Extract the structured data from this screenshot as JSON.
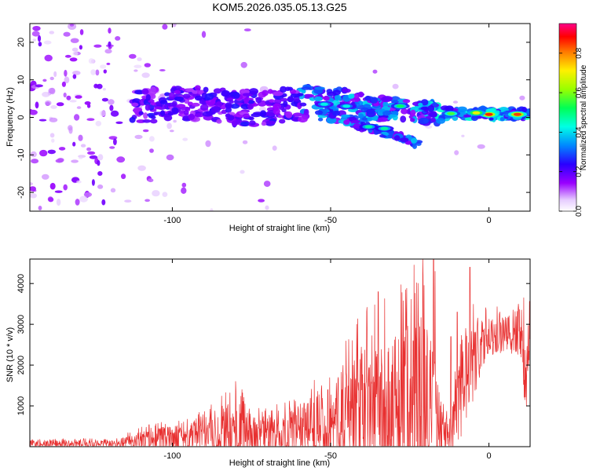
{
  "title": "KOM5.2026.035.05.13.G25",
  "colors": {
    "snr_line": "#e83030",
    "frame": "#000000"
  },
  "chart_data": [
    {
      "type": "heatmap",
      "title": "KOM5.2026.035.05.13.G25",
      "xlabel": "Height of straight line (km)",
      "ylabel": "Frequency (Hz)",
      "xlim": [
        -145,
        13
      ],
      "ylim": [
        -25,
        25
      ],
      "xticks": [
        -100,
        -50,
        0
      ],
      "xtick_labels": [
        "-100",
        "-50",
        "0"
      ],
      "yticks": [
        -20,
        -10,
        0,
        10,
        20
      ],
      "ytick_labels": [
        "-20",
        "-10",
        "0",
        "10",
        "20"
      ],
      "colorbar": {
        "label": "Normalized spectral amplitude",
        "range": [
          0,
          0.95
        ],
        "ticks": [
          0,
          0.2,
          0.4,
          0.6,
          0.8
        ],
        "tick_labels": [
          "0.0",
          "0.2",
          "0.4",
          "0.6",
          "0.8"
        ],
        "colormap": "rainbow (white-violet-blue-cyan-green-yellow-red-magenta)"
      },
      "ridge": [
        {
          "x": -113,
          "f": 3.0
        },
        {
          "x": -100,
          "f": 3.5
        },
        {
          "x": -90,
          "f": 3.5
        },
        {
          "x": -80,
          "f": 2.5
        },
        {
          "x": -70,
          "f": 2.5
        },
        {
          "x": -60,
          "f": 4.0
        },
        {
          "x": -50,
          "f": 3.5
        },
        {
          "x": -40,
          "f": 2.0
        },
        {
          "x": -30,
          "f": 2.5
        },
        {
          "x": -20,
          "f": 1.5
        },
        {
          "x": -10,
          "f": 1.0
        },
        {
          "x": 0,
          "f": 0.8
        },
        {
          "x": 13,
          "f": 0.8
        }
      ],
      "strong_blobs": [
        {
          "x": 0,
          "f": 0.8,
          "amp": 0.92
        },
        {
          "x": 9,
          "f": 0.8,
          "amp": 0.9
        },
        {
          "x": -4,
          "f": 1.2,
          "amp": 0.75
        },
        {
          "x": -12,
          "f": 1.0,
          "amp": 0.6
        },
        {
          "x": -28,
          "f": 3.0,
          "amp": 0.55
        },
        {
          "x": -33,
          "f": -3.0,
          "amp": 0.5
        },
        {
          "x": -38,
          "f": -2.5,
          "amp": 0.5
        },
        {
          "x": -45,
          "f": 3.0,
          "amp": 0.45
        },
        {
          "x": -52,
          "f": 3.5,
          "amp": 0.45
        }
      ],
      "secondary_branch": [
        {
          "x": -45,
          "f": -1.0
        },
        {
          "x": -35,
          "f": -3.5
        },
        {
          "x": -25,
          "f": -6.0
        },
        {
          "x": -22,
          "f": -7.5
        }
      ]
    },
    {
      "type": "line",
      "xlabel": "Height of straight line (km)",
      "ylabel": "SNR (10 * v/v)",
      "xlim": [
        -145,
        13
      ],
      "ylim": [
        0,
        4600
      ],
      "xticks": [
        -100,
        -50,
        0
      ],
      "xtick_labels": [
        "-100",
        "-50",
        "0"
      ],
      "yticks": [
        1000,
        2000,
        3000,
        4000
      ],
      "ytick_labels": [
        "1000",
        "2000",
        "3000",
        "4000"
      ],
      "envelope": [
        {
          "x": -145,
          "base": 60,
          "amp": 100
        },
        {
          "x": -118,
          "base": 60,
          "amp": 100
        },
        {
          "x": -110,
          "base": 150,
          "amp": 250
        },
        {
          "x": -100,
          "base": 200,
          "amp": 350
        },
        {
          "x": -90,
          "base": 250,
          "amp": 450
        },
        {
          "x": -80,
          "base": 350,
          "amp": 850
        },
        {
          "x": -70,
          "base": 250,
          "amp": 500
        },
        {
          "x": -60,
          "base": 300,
          "amp": 700
        },
        {
          "x": -50,
          "base": 500,
          "amp": 1100
        },
        {
          "x": -40,
          "base": 800,
          "amp": 1900
        },
        {
          "x": -30,
          "base": 900,
          "amp": 2100
        },
        {
          "x": -20,
          "base": 1100,
          "amp": 2700
        },
        {
          "x": -14,
          "base": 250,
          "amp": 400
        },
        {
          "x": -11,
          "base": 500,
          "amp": 800
        },
        {
          "x": -9,
          "base": 1500,
          "amp": 1500
        },
        {
          "x": 0,
          "base": 2700,
          "amp": 500
        },
        {
          "x": 10,
          "base": 2700,
          "amp": 600
        },
        {
          "x": 12,
          "base": 1200,
          "amp": 900
        },
        {
          "x": 13,
          "base": 3000,
          "amp": 700
        }
      ],
      "spikes": [
        {
          "x": -17.5,
          "value": 4600
        },
        {
          "x": -17,
          "value": 4300
        },
        {
          "x": -6,
          "value": 4400
        },
        {
          "x": -35,
          "value": 3800
        },
        {
          "x": -10,
          "value": 3300
        },
        {
          "x": -80,
          "value": 1600
        },
        {
          "x": -78,
          "value": 1400
        },
        {
          "x": -12,
          "value": 2700
        },
        {
          "x": 11,
          "value": 3650
        }
      ]
    }
  ]
}
